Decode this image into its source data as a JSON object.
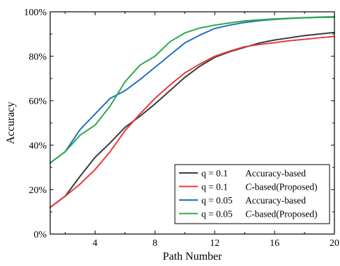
{
  "chart_data": {
    "type": "line",
    "title": "",
    "xlabel": "Path Number",
    "ylabel": "Accuracy",
    "xlim": [
      1,
      20
    ],
    "ylim": [
      0,
      100
    ],
    "x_ticks": [
      4,
      8,
      12,
      16,
      20
    ],
    "y_ticks": [
      0,
      20,
      40,
      60,
      80,
      100
    ],
    "y_tick_labels": [
      "0%",
      "20%",
      "40%",
      "60%",
      "80%",
      "100%"
    ],
    "x_tick_labels": [
      "4",
      "8",
      "12",
      "16",
      "20"
    ],
    "grid": false,
    "legend_position": "bottom-right",
    "x": [
      1,
      2,
      3,
      4,
      5,
      6,
      7,
      8,
      9,
      10,
      11,
      12,
      13,
      14,
      15,
      16,
      17,
      18,
      19,
      20
    ],
    "series": [
      {
        "name": "q = 0.1   Accuracy-based",
        "legend_q": "q = 0.1",
        "legend_label": "Accuracy-based",
        "color": "#3a3a3a",
        "values": [
          12,
          17,
          26,
          34.5,
          41,
          48,
          53,
          58.5,
          64.5,
          70.5,
          75.5,
          79.5,
          82,
          84,
          86,
          87.3,
          88.3,
          89.3,
          90,
          90.7
        ]
      },
      {
        "name": "q = 0.1   C-based(Proposed)",
        "legend_q": "q = 0.1",
        "legend_label_italic": "C",
        "legend_label": "-based(Proposed)",
        "color": "#e8383d",
        "values": [
          12,
          17,
          22.5,
          29,
          37,
          46.5,
          54,
          61,
          67,
          72.5,
          76.5,
          80,
          82.3,
          84.3,
          85.3,
          86.1,
          87,
          87.6,
          88.3,
          88.9
        ]
      },
      {
        "name": "q = 0.05  Accuracy-based",
        "legend_q": "q = 0.05",
        "legend_label": "Accuracy-based",
        "color": "#1f6fc5",
        "values": [
          32,
          37,
          47,
          54,
          61,
          64.5,
          69.5,
          75,
          80.5,
          86,
          89.5,
          92.5,
          94,
          95.2,
          96,
          96.6,
          97,
          97.3,
          97.5,
          97.6
        ]
      },
      {
        "name": "q = 0.05  C-based(Proposed)",
        "legend_q": "q = 0.05",
        "legend_label_italic": "C",
        "legend_label": "-based(Proposed)",
        "color": "#2ea84a",
        "values": [
          32,
          37,
          44.5,
          49,
          57.5,
          68.5,
          76,
          80,
          86.5,
          90.5,
          92.7,
          94,
          95,
          95.9,
          96.4,
          96.8,
          97.1,
          97.4,
          97.6,
          97.8
        ]
      }
    ]
  }
}
